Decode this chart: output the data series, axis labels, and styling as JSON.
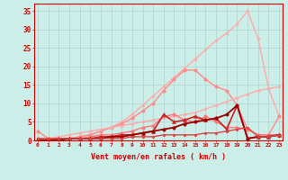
{
  "xlabel": "Vent moyen/en rafales ( km/h )",
  "x": [
    0,
    1,
    2,
    3,
    4,
    5,
    6,
    7,
    8,
    9,
    10,
    11,
    12,
    13,
    14,
    15,
    16,
    17,
    18,
    19,
    20,
    21,
    22,
    23
  ],
  "background_color": "#cceee8",
  "grid_color": "#aacccc",
  "lines": [
    {
      "y": [
        0.5,
        0.5,
        0.5,
        0.5,
        1.0,
        1.5,
        2.5,
        3.5,
        5.0,
        7.0,
        9.5,
        12.0,
        14.5,
        17.0,
        19.5,
        22.0,
        24.5,
        27.0,
        29.0,
        31.5,
        35.0,
        27.5,
        14.0,
        6.5
      ],
      "color": "#ffaaaa",
      "marker": "o",
      "markersize": 2.0,
      "linewidth": 1.0,
      "linestyle": "-"
    },
    {
      "y": [
        2.5,
        0.5,
        0.5,
        0.5,
        1.0,
        1.5,
        2.5,
        3.5,
        4.5,
        6.0,
        8.0,
        10.0,
        13.5,
        16.5,
        19.0,
        19.0,
        16.5,
        14.5,
        13.5,
        9.5,
        3.0,
        1.5,
        1.5,
        6.5
      ],
      "color": "#ff8888",
      "marker": "o",
      "markersize": 2.5,
      "linewidth": 1.0,
      "linestyle": "-"
    },
    {
      "y": [
        0.0,
        0.5,
        1.0,
        1.5,
        2.0,
        2.5,
        3.0,
        3.5,
        4.0,
        4.5,
        5.0,
        5.5,
        6.0,
        6.5,
        7.0,
        7.5,
        8.5,
        9.5,
        10.5,
        11.5,
        12.5,
        13.5,
        14.0,
        14.5
      ],
      "color": "#ffaaaa",
      "marker": "o",
      "markersize": 2.0,
      "linewidth": 1.0,
      "linestyle": "-"
    },
    {
      "y": [
        0.5,
        0.5,
        0.5,
        0.5,
        0.5,
        1.0,
        1.5,
        1.5,
        2.0,
        2.5,
        3.5,
        4.0,
        6.5,
        7.0,
        5.5,
        5.0,
        6.5,
        5.0,
        3.5,
        3.5,
        3.0,
        1.5,
        1.5,
        1.5
      ],
      "color": "#ff7777",
      "marker": "o",
      "markersize": 2.5,
      "linewidth": 1.0,
      "linestyle": "-"
    },
    {
      "comment": "dark red - peaks x=12 ~7, x=14 ~5, x=15-16 ~6, drops at x=20",
      "y": [
        0.0,
        0.0,
        0.5,
        0.5,
        0.5,
        0.5,
        1.0,
        1.0,
        1.5,
        1.5,
        2.0,
        2.5,
        7.0,
        5.0,
        5.5,
        6.5,
        5.5,
        6.0,
        3.0,
        9.5,
        0.5,
        1.0,
        1.0,
        1.5
      ],
      "color": "#cc2222",
      "marker": "^",
      "markersize": 3.0,
      "linewidth": 1.2,
      "linestyle": "-"
    },
    {
      "y": [
        0.0,
        0.0,
        0.0,
        0.5,
        0.5,
        0.5,
        0.5,
        1.0,
        1.0,
        1.5,
        2.0,
        2.5,
        3.0,
        3.5,
        4.5,
        5.0,
        5.5,
        6.0,
        7.0,
        9.5,
        0.5,
        1.0,
        1.0,
        1.5
      ],
      "color": "#990000",
      "marker": "o",
      "markersize": 2.5,
      "linewidth": 1.3,
      "linestyle": "-"
    },
    {
      "y": [
        0.5,
        0.5,
        0.5,
        0.5,
        0.5,
        0.5,
        0.5,
        0.5,
        0.5,
        1.0,
        1.0,
        1.0,
        1.5,
        1.5,
        1.5,
        1.5,
        2.0,
        2.0,
        2.5,
        3.0,
        3.5,
        1.0,
        1.0,
        1.5
      ],
      "color": "#dd4444",
      "marker": "o",
      "markersize": 2.0,
      "linewidth": 1.0,
      "linestyle": "-"
    }
  ],
  "ylim": [
    0,
    37
  ],
  "yticks": [
    0,
    5,
    10,
    15,
    20,
    25,
    30,
    35
  ],
  "xlim": [
    -0.3,
    23.3
  ]
}
